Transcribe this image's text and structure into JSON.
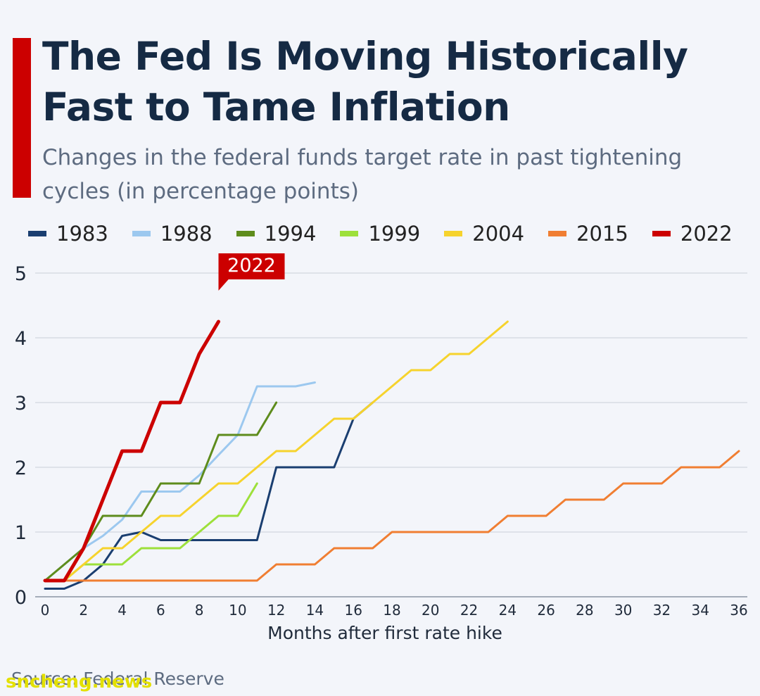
{
  "header": {
    "title": "The Fed Is Moving Historically Fast to Tame Inflation",
    "subtitle": "Changes in the federal funds target rate in past tightening cycles (in percentage points)"
  },
  "footer": {
    "source": "Source: Federal Reserve",
    "watermark": "sncheng.news"
  },
  "colors": {
    "accent": "#cc0000",
    "gridline": "#c9ced8",
    "axis_text": "#1f2a3a"
  },
  "chart_data": {
    "type": "line",
    "xlabel": "Months after first rate hike",
    "ylabel": "",
    "xlim": [
      0,
      36
    ],
    "ylim": [
      0,
      5
    ],
    "x_ticks": [
      0,
      2,
      4,
      6,
      8,
      10,
      12,
      14,
      16,
      18,
      20,
      22,
      24,
      26,
      28,
      30,
      32,
      34,
      36
    ],
    "y_ticks": [
      0,
      1,
      2,
      3,
      4,
      5
    ],
    "grid": "horizontal",
    "legend_position": "top",
    "annotation": {
      "label": "2022",
      "series": "2022"
    },
    "series": [
      {
        "name": "1983",
        "color": "#1a3e70",
        "x": [
          0,
          1,
          2,
          3,
          4,
          5,
          6,
          7,
          8,
          9,
          10,
          11,
          12,
          13,
          14,
          15,
          16,
          17
        ],
        "y": [
          0.125,
          0.125,
          0.25,
          0.5,
          0.94,
          1.0,
          0.875,
          0.875,
          0.875,
          0.875,
          0.875,
          0.875,
          2.0,
          2.0,
          2.0,
          2.0,
          2.75,
          3.0
        ]
      },
      {
        "name": "1988",
        "color": "#9cc8ef",
        "x": [
          0,
          1,
          2,
          3,
          4,
          5,
          6,
          7,
          8,
          9,
          10,
          11,
          12,
          13,
          14
        ],
        "y": [
          0.25,
          0.5,
          0.75,
          0.94,
          1.19,
          1.625,
          1.625,
          1.625,
          1.875,
          2.19,
          2.5,
          3.25,
          3.25,
          3.25,
          3.31
        ]
      },
      {
        "name": "1994",
        "color": "#5e8c1c",
        "x": [
          0,
          1,
          2,
          3,
          4,
          5,
          6,
          7,
          8,
          9,
          10,
          11,
          12
        ],
        "y": [
          0.25,
          0.5,
          0.75,
          1.25,
          1.25,
          1.25,
          1.75,
          1.75,
          1.75,
          2.5,
          2.5,
          2.5,
          3.0
        ]
      },
      {
        "name": "1999",
        "color": "#9de03a",
        "x": [
          0,
          1,
          2,
          3,
          4,
          5,
          6,
          7,
          8,
          9,
          10,
          11
        ],
        "y": [
          0.25,
          0.25,
          0.5,
          0.5,
          0.5,
          0.75,
          0.75,
          0.75,
          1.0,
          1.25,
          1.25,
          1.75
        ]
      },
      {
        "name": "2004",
        "color": "#f6d32d",
        "x": [
          0,
          1,
          2,
          3,
          4,
          5,
          6,
          7,
          8,
          9,
          10,
          11,
          12,
          13,
          14,
          15,
          16,
          17,
          18,
          19,
          20,
          21,
          22,
          23,
          24
        ],
        "y": [
          0.25,
          0.25,
          0.5,
          0.75,
          0.75,
          1.0,
          1.25,
          1.25,
          1.5,
          1.75,
          1.75,
          2.0,
          2.25,
          2.25,
          2.5,
          2.75,
          2.75,
          3.0,
          3.25,
          3.5,
          3.5,
          3.75,
          3.75,
          4.0,
          4.25
        ]
      },
      {
        "name": "2015",
        "color": "#f07e32",
        "x": [
          0,
          1,
          2,
          3,
          4,
          5,
          6,
          7,
          8,
          9,
          10,
          11,
          12,
          13,
          14,
          15,
          16,
          17,
          18,
          19,
          20,
          21,
          22,
          23,
          24,
          25,
          26,
          27,
          28,
          29,
          30,
          31,
          32,
          33,
          34,
          35,
          36
        ],
        "y": [
          0.25,
          0.25,
          0.25,
          0.25,
          0.25,
          0.25,
          0.25,
          0.25,
          0.25,
          0.25,
          0.25,
          0.25,
          0.5,
          0.5,
          0.5,
          0.75,
          0.75,
          0.75,
          1.0,
          1.0,
          1.0,
          1.0,
          1.0,
          1.0,
          1.25,
          1.25,
          1.25,
          1.5,
          1.5,
          1.5,
          1.75,
          1.75,
          1.75,
          2.0,
          2.0,
          2.0,
          2.25
        ]
      },
      {
        "name": "2022",
        "color": "#cc0000",
        "x": [
          0,
          1,
          2,
          3,
          4,
          5,
          6,
          7,
          8,
          9
        ],
        "y": [
          0.25,
          0.25,
          0.75,
          1.5,
          2.25,
          2.25,
          3.0,
          3.0,
          3.75,
          4.25
        ]
      }
    ]
  }
}
